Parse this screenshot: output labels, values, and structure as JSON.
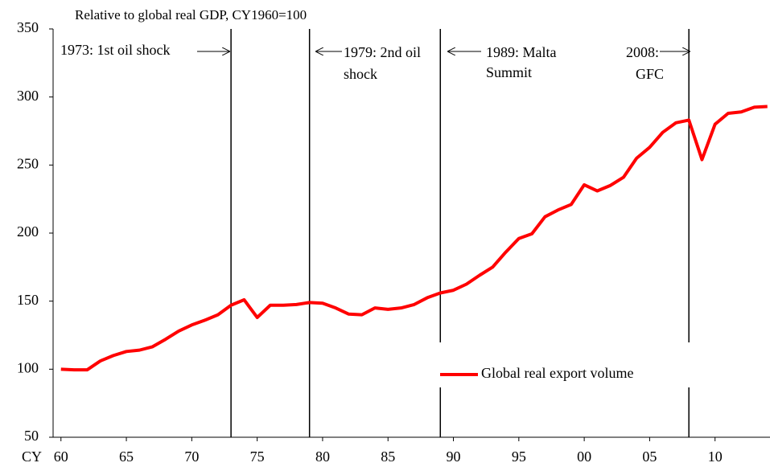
{
  "chart_data": {
    "type": "line",
    "subtitle": "Relative to global real GDP, CY1960=100",
    "x_prefix": "CY",
    "x": [
      1960,
      1961,
      1962,
      1963,
      1964,
      1965,
      1966,
      1967,
      1968,
      1969,
      1970,
      1971,
      1972,
      1973,
      1974,
      1975,
      1976,
      1977,
      1978,
      1979,
      1980,
      1981,
      1982,
      1983,
      1984,
      1985,
      1986,
      1987,
      1988,
      1989,
      1990,
      1991,
      1992,
      1993,
      1994,
      1995,
      1996,
      1997,
      1998,
      1999,
      2000,
      2001,
      2002,
      2003,
      2004,
      2005,
      2006,
      2007,
      2008,
      2009,
      2010,
      2011,
      2012,
      2013,
      2014
    ],
    "series": [
      {
        "name": "Global real export volume",
        "color": "#ff0000",
        "values": [
          100,
          99.5,
          99.5,
          106,
          110,
          113,
          114,
          116.5,
          122,
          128,
          132.5,
          136,
          140,
          147,
          151,
          138,
          147,
          147,
          147.5,
          149,
          148.5,
          145,
          140.5,
          140,
          145,
          144,
          145,
          147.5,
          152.5,
          156,
          158,
          162.5,
          169,
          175,
          186,
          196,
          199.5,
          212,
          217,
          221,
          235.5,
          231,
          235,
          241,
          255,
          263,
          274,
          281,
          283,
          254,
          280,
          288,
          289,
          292.5,
          293
        ]
      }
    ],
    "xlim": [
      1959.4,
      2014.2
    ],
    "xticks": [
      {
        "value": 1960,
        "label": "60"
      },
      {
        "value": 1965,
        "label": "65"
      },
      {
        "value": 1970,
        "label": "70"
      },
      {
        "value": 1975,
        "label": "75"
      },
      {
        "value": 1980,
        "label": "80"
      },
      {
        "value": 1985,
        "label": "85"
      },
      {
        "value": 1990,
        "label": "90"
      },
      {
        "value": 1995,
        "label": "95"
      },
      {
        "value": 2000,
        "label": "00"
      },
      {
        "value": 2005,
        "label": "05"
      },
      {
        "value": 2010,
        "label": "10"
      }
    ],
    "ylim": [
      50,
      350
    ],
    "yticks": [
      50,
      100,
      150,
      200,
      250,
      300,
      350
    ],
    "annotations": [
      {
        "x": 1973,
        "lines": [
          "1973: 1st oil shock"
        ]
      },
      {
        "x": 1979,
        "lines": [
          "1979: 2nd oil",
          "shock"
        ]
      },
      {
        "x": 1989,
        "lines": [
          "1989: Malta",
          "Summit"
        ]
      },
      {
        "x": 2008,
        "lines": [
          "2008:",
          "GFC"
        ]
      }
    ]
  }
}
